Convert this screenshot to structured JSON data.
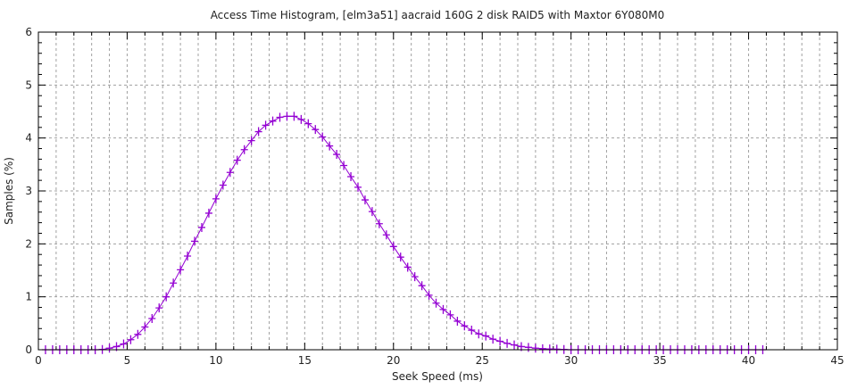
{
  "chart_data": {
    "type": "line",
    "title": "Access Time Histogram, [elm3a51] aacraid 160G 2 disk RAID5 with Maxtor 6Y080M0",
    "xlabel": "Seek Speed (ms)",
    "ylabel": "Samples (%)",
    "xlim": [
      0,
      45
    ],
    "ylim": [
      0,
      6
    ],
    "xticks": [
      "0",
      "5",
      "10",
      "15",
      "20",
      "25",
      "30",
      "35",
      "40",
      "45"
    ],
    "yticks": [
      "0",
      "1",
      "2",
      "3",
      "4",
      "5",
      "6"
    ],
    "grid": true,
    "marker": "plus",
    "series": [
      {
        "color": "#9400d3",
        "x": [
          0.4,
          0.8,
          1.2,
          1.6,
          2.0,
          2.4,
          2.8,
          3.2,
          3.6,
          4.0,
          4.4,
          4.8,
          5.2,
          5.6,
          6.0,
          6.4,
          6.8,
          7.2,
          7.6,
          8.0,
          8.4,
          8.8,
          9.2,
          9.6,
          10.0,
          10.4,
          10.8,
          11.2,
          11.6,
          12.0,
          12.4,
          12.8,
          13.2,
          13.6,
          14.0,
          14.4,
          14.8,
          15.2,
          15.6,
          16.0,
          16.4,
          16.8,
          17.2,
          17.6,
          18.0,
          18.4,
          18.8,
          19.2,
          19.6,
          20.0,
          20.4,
          20.8,
          21.2,
          21.6,
          22.0,
          22.4,
          22.8,
          23.2,
          23.6,
          24.0,
          24.4,
          24.8,
          25.2,
          25.6,
          26.0,
          26.4,
          26.8,
          27.2,
          27.6,
          28.0,
          28.4,
          28.8,
          29.2,
          29.6,
          30.0,
          30.4,
          30.8,
          31.2,
          31.6,
          32.0,
          32.4,
          32.8,
          33.2,
          33.6,
          34.0,
          34.4,
          34.8,
          35.2,
          35.6,
          36.0,
          36.4,
          36.8,
          37.2,
          37.6,
          38.0,
          38.4,
          38.8,
          39.2,
          39.6,
          40.0,
          40.4,
          40.8
        ],
        "y": [
          0,
          0,
          0,
          0,
          0,
          0,
          0,
          0,
          0.005,
          0.03,
          0.06,
          0.11,
          0.19,
          0.29,
          0.43,
          0.59,
          0.79,
          1.0,
          1.26,
          1.51,
          1.77,
          2.05,
          2.31,
          2.58,
          2.85,
          3.11,
          3.35,
          3.58,
          3.78,
          3.95,
          4.12,
          4.24,
          4.32,
          4.39,
          4.41,
          4.41,
          4.35,
          4.27,
          4.16,
          4.02,
          3.85,
          3.69,
          3.48,
          3.27,
          3.07,
          2.83,
          2.61,
          2.38,
          2.17,
          1.95,
          1.75,
          1.56,
          1.38,
          1.21,
          1.03,
          0.88,
          0.76,
          0.66,
          0.54,
          0.45,
          0.37,
          0.3,
          0.26,
          0.2,
          0.16,
          0.12,
          0.09,
          0.06,
          0.045,
          0.03,
          0.02,
          0.015,
          0.01,
          0.005,
          0,
          0,
          0,
          0,
          0,
          0,
          0,
          0,
          0,
          0,
          0,
          0,
          0,
          0,
          0,
          0,
          0,
          0,
          0,
          0,
          0,
          0,
          0,
          0,
          0,
          0,
          0,
          0
        ]
      }
    ]
  }
}
